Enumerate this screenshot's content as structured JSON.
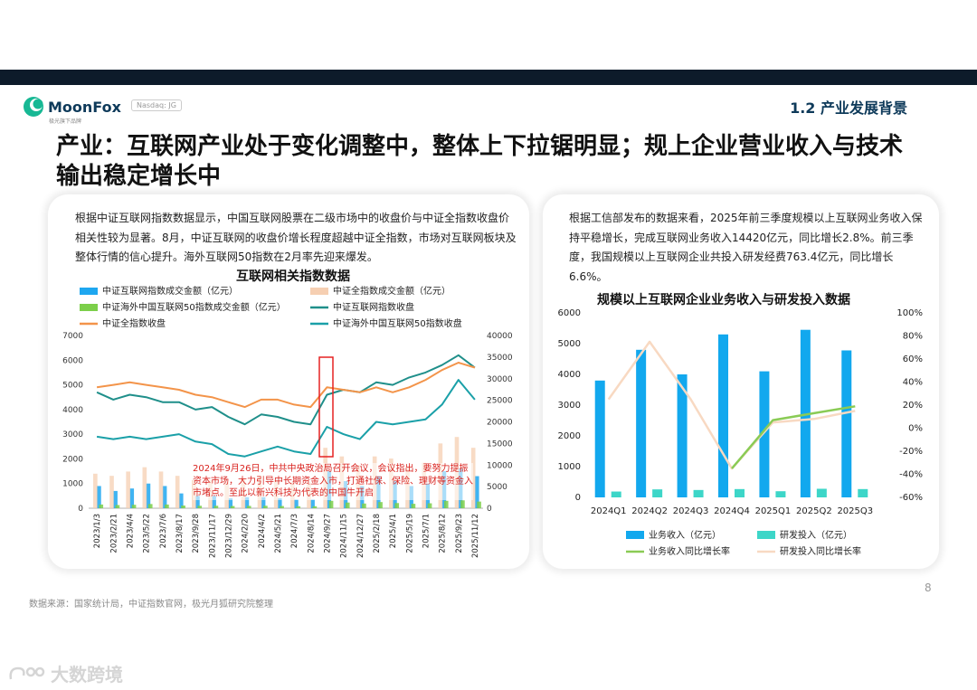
{
  "header": {
    "brand_name": "MoonFox",
    "brand_tagline": "极光旗下品牌",
    "ticker": "Nasdaq: JG",
    "section": "1.2 产业发展背景"
  },
  "title": "产业：互联网产业处于变化调整中，整体上下拉锯明显；规上企业营业收入与技术输出稳定增长中",
  "left_card": {
    "paragraph": "根据中证互联网指数数据显示，中国互联网股票在二级市场中的收盘价与中证全指数收盘价相关性较为显著。8月，中证互联网的收盘价增长程度超越中证全指数，市场对互联网板块及整体行情的信心提升。海外互联网50指数在2月率先迎来爆发。",
    "annotation": "2024年9月26日，中共中央政治局召开会议，会议指出，要努力提振资本市场，大力引导中长期资金入市，打通社保、保险、理财等资金入市堵点。至此以新兴科技为代表的中国牛开启"
  },
  "right_card": {
    "paragraph": "根据工信部发布的数据来看，2025年前三季度规模以上互联网业务收入保持平稳增长，完成互联网业务收入14420亿元，同比增长2.8%。前三季度，我国规模以上互联网企业共投入研发经费763.4亿元，同比增长6.6%。"
  },
  "footer": {
    "source": "数据来源：国家统计局，中证指数官网，极光月狐研究院整理",
    "page_number": "8",
    "watermark": "大数跨境"
  },
  "chart_data": [
    {
      "type": "line",
      "title": "互联网相关指数数据",
      "x_ticks": [
        "2023/1/3",
        "2023/2/21",
        "2023/4/4",
        "2023/5/22",
        "2023/7/6",
        "2023/8/17",
        "2023/9/28",
        "2023/11/17",
        "2023/12/29",
        "2024/2/20",
        "2024/4/2",
        "2024/5/21",
        "2024/7/3",
        "2024/8/14",
        "2024/9/27",
        "2024/11/15",
        "2024/12/27",
        "2025/2/18",
        "2025/4/1",
        "2025/5/19",
        "2025/7/1",
        "2025/8/12",
        "2025/9/23",
        "2025/11/12"
      ],
      "y_left": {
        "range": [
          0,
          7000
        ],
        "ticks": [
          "0",
          "1000",
          "2000",
          "3000",
          "4000",
          "5000",
          "6000",
          "7000"
        ]
      },
      "y_right": {
        "range": [
          0,
          40000
        ],
        "ticks": [
          "0",
          "5000",
          "10000",
          "15000",
          "20000",
          "25000",
          "30000",
          "35000",
          "40000"
        ]
      },
      "series": [
        {
          "name": "中证互联网指数成交金额（亿元）",
          "kind": "bar",
          "axis": "left",
          "color": "#1ea7f0",
          "values": [
            900,
            700,
            800,
            1000,
            900,
            600,
            500,
            500,
            400,
            450,
            450,
            400,
            350,
            350,
            1500,
            1100,
            900,
            1300,
            1100,
            900,
            1000,
            1500,
            1600,
            1300
          ]
        },
        {
          "name": "中证全指数成交金额（亿元）",
          "kind": "bar",
          "axis": "right",
          "color": "#f6cfb2",
          "values": [
            8000,
            7500,
            8500,
            9500,
            8500,
            7500,
            6500,
            6500,
            6000,
            7000,
            7500,
            6500,
            6000,
            6000,
            14000,
            12000,
            10000,
            12000,
            11500,
            9500,
            10500,
            15000,
            16500,
            14000
          ]
        },
        {
          "name": "中证海外中国互联网50指数成交金额（亿元）",
          "kind": "bar",
          "axis": "left",
          "color": "#7ccf4a",
          "values": [
            150,
            130,
            140,
            170,
            150,
            110,
            100,
            100,
            90,
            95,
            100,
            90,
            80,
            80,
            300,
            230,
            190,
            250,
            210,
            180,
            200,
            300,
            320,
            270
          ]
        },
        {
          "name": "中证互联网指数收盘",
          "kind": "line",
          "axis": "left",
          "color": "#1f8f8a",
          "values": [
            4700,
            4400,
            4600,
            4500,
            4300,
            4300,
            4000,
            4100,
            3700,
            3400,
            3800,
            3700,
            3500,
            3400,
            4600,
            4800,
            4700,
            5100,
            5000,
            5300,
            5500,
            5800,
            6200,
            5700
          ]
        },
        {
          "name": "中证全指数收盘",
          "kind": "line",
          "axis": "left",
          "color": "#f3944a",
          "values": [
            4900,
            5000,
            5100,
            5000,
            4900,
            4800,
            4600,
            4500,
            4300,
            4100,
            4400,
            4400,
            4200,
            4100,
            4900,
            4800,
            4700,
            4900,
            4700,
            4900,
            5200,
            5600,
            5900,
            5700
          ]
        },
        {
          "name": "中证海外中国互联网50指数收盘",
          "kind": "line",
          "axis": "left",
          "color": "#1aa0a8",
          "values": [
            2900,
            2800,
            2900,
            2800,
            2900,
            3000,
            2700,
            2600,
            2200,
            2100,
            2300,
            2500,
            2300,
            2200,
            3300,
            3000,
            2800,
            3500,
            3400,
            3500,
            3600,
            4200,
            5200,
            4400
          ]
        }
      ]
    },
    {
      "type": "bar",
      "title": "规模以上互联网企业业务收入与研发投入数据",
      "categories": [
        "2024Q1",
        "2024Q2",
        "2024Q3",
        "2024Q4",
        "2025Q1",
        "2025Q2",
        "2025Q3"
      ],
      "y_left": {
        "range": [
          0,
          6000
        ],
        "ticks": [
          "0",
          "1000",
          "2000",
          "3000",
          "4000",
          "5000",
          "6000"
        ]
      },
      "y_right": {
        "range": [
          -60,
          100
        ],
        "ticks": [
          "-60%",
          "-40%",
          "-20%",
          "0%",
          "20%",
          "40%",
          "60%",
          "80%",
          "100%"
        ]
      },
      "series": [
        {
          "name": "业务收入（亿元）",
          "kind": "bar",
          "axis": "left",
          "color": "#12a8ee",
          "values": [
            3800,
            4800,
            4000,
            5300,
            4100,
            5450,
            4780
          ]
        },
        {
          "name": "研发投入（亿元）",
          "kind": "bar",
          "axis": "left",
          "color": "#3dd6c8",
          "values": [
            190,
            260,
            240,
            270,
            200,
            280,
            270
          ]
        },
        {
          "name": "业务收入同比增长率",
          "kind": "line",
          "axis": "right",
          "color": "#8acb55",
          "values": [
            null,
            null,
            null,
            -35,
            7,
            13,
            19
          ]
        },
        {
          "name": "研发投入同比增长率",
          "kind": "line",
          "axis": "right",
          "color": "#f8d9c2",
          "values": [
            25,
            75,
            25,
            -35,
            5,
            8,
            15
          ]
        }
      ]
    }
  ]
}
